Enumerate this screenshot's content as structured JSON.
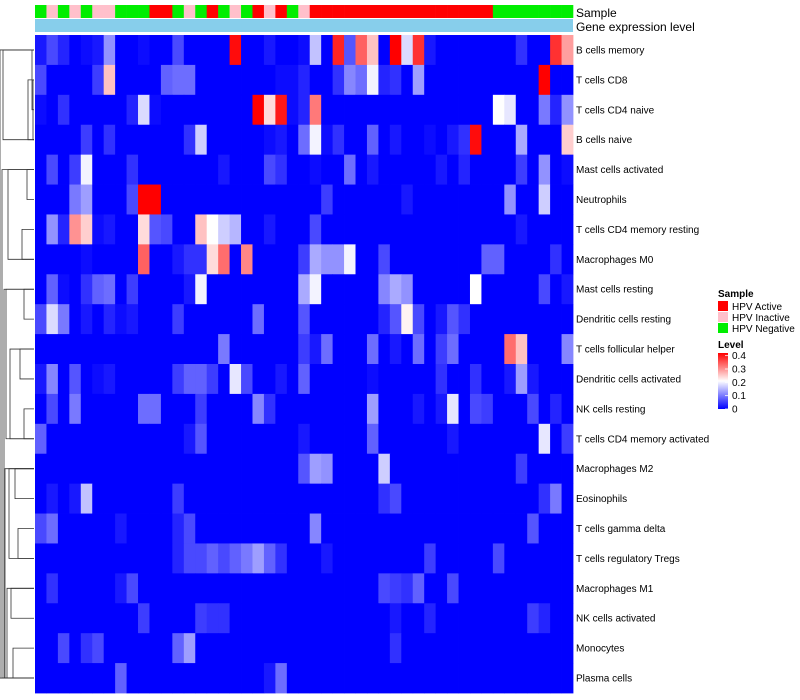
{
  "chart_data": {
    "type": "heatmap",
    "annotation_labels": {
      "sample": "Sample",
      "gene_expression": "Gene expression level"
    },
    "row_labels": [
      "B cells memory",
      "T cells CD8",
      "T cells CD4 naive",
      "B cells naive",
      "Mast cells activated",
      "Neutrophils",
      "T cells CD4 memory resting",
      "Macrophages M0",
      "Mast cells resting",
      "Dendritic cells resting",
      "T cells follicular helper",
      "Dendritic cells activated",
      "NK cells resting",
      "T cells CD4 memory activated",
      "Macrophages M2",
      "Eosinophils",
      "T cells gamma delta",
      "T cells regulatory  Tregs",
      "Macrophages M1",
      "NK cells activated",
      "Monocytes",
      "Plasma cells"
    ],
    "sample_groups": [
      "N",
      "I",
      "N",
      "I",
      "N",
      "I",
      "I",
      "N",
      "N",
      "N",
      "A",
      "A",
      "N",
      "I",
      "N",
      "A",
      "N",
      "I",
      "N",
      "A",
      "I",
      "A",
      "N",
      "I",
      "A",
      "A",
      "A",
      "A",
      "A",
      "A",
      "A",
      "A",
      "A",
      "A",
      "A",
      "A",
      "A",
      "A",
      "A",
      "A",
      "N",
      "N",
      "N",
      "N",
      "N",
      "N",
      "N"
    ],
    "legend": {
      "sample_title": "Sample",
      "sample_items": [
        {
          "label": "HPV Active",
          "color": "#ff0000"
        },
        {
          "label": "HPV Inactive",
          "color": "#ffc0cb"
        },
        {
          "label": "HPV Negative",
          "color": "#00ee00"
        }
      ],
      "level_title": "Level",
      "level_ticks": [
        "0.4",
        "0.3",
        "0.2",
        "0.1",
        "0"
      ],
      "level_range": [
        0,
        0.42
      ]
    },
    "colors": {
      "low": "#0000ff",
      "mid": "#ffffff",
      "high": "#ff0000",
      "gene_bar": "#87ceeb"
    },
    "grid": false,
    "values": [
      [
        0.02,
        0.06,
        0.03,
        0.0,
        0.01,
        0.02,
        0.12,
        0.0,
        0.0,
        0.01,
        0.0,
        0.0,
        0.06,
        0.0,
        0.0,
        0.0,
        0.0,
        0.41,
        0.0,
        0.0,
        0.02,
        0.0,
        0.0,
        0.01,
        0.16,
        0.0,
        0.39,
        0.07,
        0.34,
        0.26,
        0.0,
        0.42,
        0.18,
        0.38,
        0.02,
        0.0,
        0.0,
        0.0,
        0.0,
        0.0,
        0.0,
        0.0,
        0.04,
        0.0,
        0.0,
        0.38,
        0.29
      ],
      [
        0.06,
        0.0,
        0.0,
        0.0,
        0.0,
        0.05,
        0.26,
        0.0,
        0.0,
        0.0,
        0.0,
        0.08,
        0.09,
        0.09,
        0.0,
        0.0,
        0.0,
        0.0,
        0.0,
        0.0,
        0.0,
        0.01,
        0.01,
        0.03,
        0.0,
        0.0,
        0.04,
        0.11,
        0.09,
        0.2,
        0.03,
        0.04,
        0.0,
        0.13,
        0.0,
        0.0,
        0.0,
        0.0,
        0.0,
        0.0,
        0.0,
        0.0,
        0.0,
        0.0,
        0.42,
        0.0,
        0.0
      ],
      [
        0.01,
        0.0,
        0.04,
        0.0,
        0.0,
        0.0,
        0.0,
        0.0,
        0.03,
        0.18,
        0.01,
        0.0,
        0.0,
        0.0,
        0.0,
        0.0,
        0.0,
        0.0,
        0.0,
        0.42,
        0.24,
        0.4,
        0.01,
        0.03,
        0.32,
        0.0,
        0.0,
        0.0,
        0.0,
        0.0,
        0.0,
        0.0,
        0.0,
        0.0,
        0.0,
        0.0,
        0.0,
        0.0,
        0.0,
        0.0,
        0.21,
        0.19,
        0.0,
        0.0,
        0.1,
        0.03,
        0.12
      ],
      [
        0.0,
        0.0,
        0.0,
        0.0,
        0.05,
        0.0,
        0.04,
        0.0,
        0.0,
        0.0,
        0.0,
        0.0,
        0.0,
        0.04,
        0.17,
        0.0,
        0.0,
        0.0,
        0.0,
        0.0,
        0.01,
        0.02,
        0.0,
        0.09,
        0.2,
        0.01,
        0.04,
        0.0,
        0.0,
        0.08,
        0.0,
        0.02,
        0.0,
        0.0,
        0.01,
        0.0,
        0.02,
        0.04,
        0.41,
        0.0,
        0.0,
        0.0,
        0.14,
        0.0,
        0.0,
        0.0,
        0.25
      ],
      [
        0.0,
        0.06,
        0.0,
        0.05,
        0.2,
        0.0,
        0.0,
        0.0,
        0.04,
        0.0,
        0.0,
        0.0,
        0.0,
        0.0,
        0.0,
        0.0,
        0.02,
        0.0,
        0.0,
        0.0,
        0.06,
        0.04,
        0.0,
        0.0,
        0.01,
        0.0,
        0.0,
        0.09,
        0.0,
        0.02,
        0.0,
        0.0,
        0.0,
        0.0,
        0.0,
        0.02,
        0.0,
        0.03,
        0.0,
        0.0,
        0.0,
        0.0,
        0.05,
        0.0,
        0.12,
        0.0,
        0.01
      ],
      [
        0.0,
        0.0,
        0.0,
        0.1,
        0.13,
        0.0,
        0.0,
        0.0,
        0.06,
        0.42,
        0.42,
        0.0,
        0.0,
        0.0,
        0.0,
        0.0,
        0.0,
        0.0,
        0.0,
        0.0,
        0.0,
        0.0,
        0.0,
        0.0,
        0.0,
        0.05,
        0.0,
        0.0,
        0.0,
        0.0,
        0.0,
        0.0,
        0.02,
        0.0,
        0.0,
        0.0,
        0.0,
        0.0,
        0.0,
        0.0,
        0.0,
        0.12,
        0.0,
        0.0,
        0.17,
        0.0,
        0.0
      ],
      [
        0.0,
        0.12,
        0.03,
        0.3,
        0.25,
        0.01,
        0.02,
        0.0,
        0.0,
        0.24,
        0.07,
        0.06,
        0.0,
        0.0,
        0.26,
        0.21,
        0.17,
        0.15,
        0.0,
        0.0,
        0.02,
        0.0,
        0.0,
        0.0,
        0.06,
        0.0,
        0.0,
        0.0,
        0.0,
        0.0,
        0.0,
        0.0,
        0.0,
        0.0,
        0.0,
        0.0,
        0.0,
        0.0,
        0.0,
        0.0,
        0.0,
        0.0,
        0.02,
        0.0,
        0.0,
        0.0,
        0.0
      ],
      [
        0.0,
        0.0,
        0.0,
        0.0,
        0.01,
        0.0,
        0.0,
        0.0,
        0.0,
        0.34,
        0.0,
        0.0,
        0.02,
        0.04,
        0.04,
        0.24,
        0.33,
        0.0,
        0.31,
        0.0,
        0.0,
        0.0,
        0.0,
        0.05,
        0.14,
        0.12,
        0.12,
        0.2,
        0.0,
        0.0,
        0.06,
        0.0,
        0.0,
        0.0,
        0.0,
        0.0,
        0.0,
        0.0,
        0.0,
        0.08,
        0.08,
        0.0,
        0.0,
        0.0,
        0.0,
        0.04,
        0.0
      ],
      [
        0.0,
        0.08,
        0.01,
        0.0,
        0.04,
        0.08,
        0.09,
        0.0,
        0.05,
        0.0,
        0.0,
        0.0,
        0.0,
        0.02,
        0.2,
        0.0,
        0.0,
        0.0,
        0.0,
        0.0,
        0.0,
        0.0,
        0.0,
        0.14,
        0.2,
        0.0,
        0.0,
        0.0,
        0.0,
        0.0,
        0.11,
        0.14,
        0.12,
        0.0,
        0.0,
        0.0,
        0.0,
        0.0,
        0.21,
        0.0,
        0.0,
        0.0,
        0.0,
        0.0,
        0.06,
        0.0,
        0.02
      ],
      [
        0.06,
        0.18,
        0.1,
        0.0,
        0.02,
        0.0,
        0.03,
        0.01,
        0.02,
        0.0,
        0.0,
        0.0,
        0.05,
        0.0,
        0.0,
        0.0,
        0.0,
        0.0,
        0.0,
        0.09,
        0.0,
        0.0,
        0.0,
        0.07,
        0.0,
        0.0,
        0.0,
        0.0,
        0.0,
        0.0,
        0.03,
        0.07,
        0.22,
        0.06,
        0.0,
        0.02,
        0.07,
        0.04,
        0.0,
        0.0,
        0.0,
        0.0,
        0.0,
        0.0,
        0.0,
        0.0,
        0.0
      ],
      [
        0.0,
        0.0,
        0.0,
        0.0,
        0.0,
        0.0,
        0.0,
        0.0,
        0.0,
        0.0,
        0.0,
        0.0,
        0.0,
        0.0,
        0.0,
        0.0,
        0.1,
        0.0,
        0.0,
        0.0,
        0.0,
        0.0,
        0.0,
        0.05,
        0.02,
        0.09,
        0.0,
        0.0,
        0.0,
        0.09,
        0.0,
        0.02,
        0.0,
        0.09,
        0.0,
        0.05,
        0.09,
        0.0,
        0.0,
        0.0,
        0.0,
        0.33,
        0.26,
        0.0,
        0.0,
        0.0,
        0.11
      ],
      [
        0.02,
        0.11,
        0.0,
        0.07,
        0.0,
        0.01,
        0.02,
        0.0,
        0.0,
        0.0,
        0.0,
        0.0,
        0.05,
        0.08,
        0.08,
        0.05,
        0.0,
        0.19,
        0.06,
        0.0,
        0.0,
        0.02,
        0.0,
        0.08,
        0.0,
        0.0,
        0.0,
        0.0,
        0.0,
        0.01,
        0.0,
        0.0,
        0.0,
        0.0,
        0.0,
        0.04,
        0.0,
        0.0,
        0.04,
        0.0,
        0.0,
        0.02,
        0.13,
        0.02,
        0.0,
        0.0,
        0.0
      ],
      [
        0.0,
        0.06,
        0.0,
        0.1,
        0.0,
        0.0,
        0.0,
        0.0,
        0.0,
        0.09,
        0.09,
        0.0,
        0.0,
        0.0,
        0.05,
        0.0,
        0.0,
        0.0,
        0.0,
        0.11,
        0.04,
        0.0,
        0.0,
        0.0,
        0.0,
        0.0,
        0.0,
        0.0,
        0.0,
        0.13,
        0.0,
        0.0,
        0.0,
        0.02,
        0.0,
        0.02,
        0.19,
        0.0,
        0.06,
        0.05,
        0.0,
        0.0,
        0.0,
        0.06,
        0.0,
        0.03,
        0.0
      ],
      [
        0.08,
        0.0,
        0.0,
        0.0,
        0.0,
        0.0,
        0.0,
        0.0,
        0.0,
        0.0,
        0.0,
        0.0,
        0.0,
        0.02,
        0.07,
        0.0,
        0.0,
        0.0,
        0.0,
        0.0,
        0.0,
        0.0,
        0.0,
        0.02,
        0.0,
        0.0,
        0.0,
        0.0,
        0.0,
        0.08,
        0.0,
        0.0,
        0.0,
        0.0,
        0.0,
        0.0,
        0.02,
        0.0,
        0.0,
        0.0,
        0.0,
        0.0,
        0.0,
        0.0,
        0.19,
        0.0,
        0.05
      ],
      [
        0.0,
        0.0,
        0.0,
        0.0,
        0.0,
        0.0,
        0.0,
        0.0,
        0.0,
        0.0,
        0.0,
        0.0,
        0.0,
        0.0,
        0.0,
        0.0,
        0.0,
        0.0,
        0.0,
        0.0,
        0.0,
        0.0,
        0.0,
        0.07,
        0.13,
        0.12,
        0.0,
        0.0,
        0.0,
        0.0,
        0.17,
        0.0,
        0.0,
        0.0,
        0.0,
        0.0,
        0.0,
        0.0,
        0.0,
        0.0,
        0.0,
        0.0,
        0.05,
        0.0,
        0.0,
        0.0,
        0.0
      ],
      [
        0.0,
        0.02,
        0.0,
        0.02,
        0.16,
        0.0,
        0.0,
        0.0,
        0.0,
        0.0,
        0.0,
        0.0,
        0.05,
        0.0,
        0.0,
        0.0,
        0.0,
        0.0,
        0.0,
        0.0,
        0.0,
        0.0,
        0.0,
        0.0,
        0.0,
        0.0,
        0.0,
        0.0,
        0.0,
        0.0,
        0.04,
        0.06,
        0.0,
        0.0,
        0.0,
        0.0,
        0.0,
        0.0,
        0.0,
        0.0,
        0.0,
        0.0,
        0.0,
        0.0,
        0.04,
        0.1,
        0.0
      ],
      [
        0.06,
        0.09,
        0.0,
        0.0,
        0.0,
        0.0,
        0.0,
        0.02,
        0.0,
        0.0,
        0.0,
        0.0,
        0.03,
        0.06,
        0.0,
        0.0,
        0.0,
        0.0,
        0.0,
        0.0,
        0.0,
        0.0,
        0.0,
        0.0,
        0.11,
        0.0,
        0.0,
        0.0,
        0.0,
        0.0,
        0.0,
        0.0,
        0.0,
        0.0,
        0.0,
        0.0,
        0.0,
        0.0,
        0.0,
        0.0,
        0.0,
        0.0,
        0.0,
        0.07,
        0.0,
        0.0,
        0.0
      ],
      [
        0.0,
        0.0,
        0.0,
        0.0,
        0.0,
        0.0,
        0.0,
        0.0,
        0.0,
        0.0,
        0.0,
        0.0,
        0.03,
        0.06,
        0.06,
        0.08,
        0.06,
        0.08,
        0.1,
        0.13,
        0.08,
        0.04,
        0.0,
        0.0,
        0.0,
        0.02,
        0.0,
        0.0,
        0.0,
        0.0,
        0.0,
        0.0,
        0.0,
        0.0,
        0.05,
        0.0,
        0.0,
        0.0,
        0.0,
        0.0,
        0.06,
        0.0,
        0.0,
        0.0,
        0.0,
        0.0,
        0.0
      ],
      [
        0.0,
        0.04,
        0.0,
        0.0,
        0.0,
        0.0,
        0.0,
        0.02,
        0.06,
        0.0,
        0.0,
        0.0,
        0.0,
        0.0,
        0.0,
        0.0,
        0.0,
        0.0,
        0.0,
        0.0,
        0.0,
        0.0,
        0.0,
        0.0,
        0.0,
        0.0,
        0.0,
        0.0,
        0.0,
        0.0,
        0.06,
        0.05,
        0.04,
        0.08,
        0.0,
        0.0,
        0.06,
        0.0,
        0.0,
        0.0,
        0.0,
        0.0,
        0.0,
        0.0,
        0.0,
        0.0,
        0.0
      ],
      [
        0.0,
        0.0,
        0.0,
        0.0,
        0.0,
        0.0,
        0.0,
        0.0,
        0.0,
        0.05,
        0.0,
        0.0,
        0.0,
        0.0,
        0.05,
        0.04,
        0.04,
        0.0,
        0.0,
        0.0,
        0.0,
        0.0,
        0.0,
        0.0,
        0.0,
        0.0,
        0.0,
        0.0,
        0.0,
        0.0,
        0.0,
        0.02,
        0.0,
        0.0,
        0.03,
        0.0,
        0.0,
        0.0,
        0.0,
        0.0,
        0.0,
        0.0,
        0.0,
        0.05,
        0.03,
        0.0,
        0.0
      ],
      [
        0.0,
        0.0,
        0.06,
        0.0,
        0.04,
        0.06,
        0.0,
        0.0,
        0.0,
        0.0,
        0.0,
        0.0,
        0.08,
        0.13,
        0.0,
        0.0,
        0.0,
        0.0,
        0.0,
        0.0,
        0.0,
        0.0,
        0.0,
        0.0,
        0.0,
        0.0,
        0.0,
        0.0,
        0.0,
        0.0,
        0.0,
        0.04,
        0.0,
        0.0,
        0.0,
        0.0,
        0.0,
        0.0,
        0.0,
        0.0,
        0.0,
        0.0,
        0.0,
        0.0,
        0.0,
        0.0,
        0.0
      ],
      [
        0.0,
        0.0,
        0.0,
        0.0,
        0.0,
        0.0,
        0.0,
        0.08,
        0.0,
        0.0,
        0.0,
        0.0,
        0.0,
        0.0,
        0.0,
        0.0,
        0.0,
        0.0,
        0.0,
        0.0,
        0.02,
        0.09,
        0.0,
        0.0,
        0.0,
        0.0,
        0.0,
        0.0,
        0.0,
        0.0,
        0.0,
        0.0,
        0.0,
        0.0,
        0.0,
        0.0,
        0.0,
        0.0,
        0.0,
        0.0,
        0.0,
        0.0,
        0.0,
        0.0,
        0.0,
        0.0,
        0.0
      ]
    ]
  }
}
